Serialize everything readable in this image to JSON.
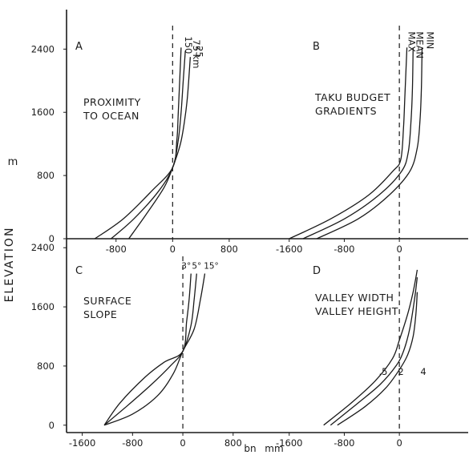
{
  "figure": {
    "ylabel": "ELEVATION",
    "yunit": "m",
    "xlabel": "bn",
    "xunit": "mm"
  },
  "chart_data": [
    {
      "type": "line",
      "panel_letter": "A",
      "title_lines": [
        "PROXIMITY",
        "TO OCEAN"
      ],
      "xlim": [
        -1500,
        1300
      ],
      "ylim": [
        0,
        2900
      ],
      "xticks": [
        {
          "v": -800,
          "label": "-800"
        },
        {
          "v": 0,
          "label": "0"
        },
        {
          "v": 800,
          "label": "800"
        }
      ],
      "yticks": [
        {
          "v": 0,
          "label": "0"
        },
        {
          "v": 800,
          "label": "800"
        },
        {
          "v": 1600,
          "label": "1600"
        },
        {
          "v": 2400,
          "label": "2400"
        }
      ],
      "show_x_axis_line": true,
      "series": [
        {
          "name": "150",
          "points": [
            [
              -1100,
              0
            ],
            [
              -700,
              250
            ],
            [
              -300,
              600
            ],
            [
              0,
              900
            ],
            [
              60,
              1250
            ],
            [
              80,
              1600
            ],
            [
              100,
              2000
            ],
            [
              120,
              2420
            ]
          ]
        },
        {
          "name": "75 km",
          "points": [
            [
              -870,
              0
            ],
            [
              -550,
              250
            ],
            [
              -200,
              600
            ],
            [
              0,
              900
            ],
            [
              80,
              1250
            ],
            [
              120,
              1600
            ],
            [
              150,
              2000
            ],
            [
              180,
              2380
            ]
          ]
        },
        {
          "name": "25",
          "points": [
            [
              -620,
              0
            ],
            [
              -380,
              300
            ],
            [
              -120,
              650
            ],
            [
              0,
              900
            ],
            [
              110,
              1200
            ],
            [
              170,
              1500
            ],
            [
              210,
              1800
            ],
            [
              250,
              2300
            ]
          ]
        }
      ]
    },
    {
      "type": "line",
      "panel_letter": "B",
      "title_lines": [
        "TAKU BUDGET",
        "GRADIENTS"
      ],
      "xlim": [
        -1900,
        1000
      ],
      "ylim": [
        0,
        2900
      ],
      "xticks": [
        {
          "v": -1600,
          "label": "-1600"
        },
        {
          "v": -800,
          "label": "-800"
        },
        {
          "v": 0,
          "label": "0"
        }
      ],
      "yticks": [],
      "show_x_axis_line": true,
      "series": [
        {
          "name": "MAX",
          "points": [
            [
              -1600,
              0
            ],
            [
              -1000,
              250
            ],
            [
              -450,
              550
            ],
            [
              -100,
              850
            ],
            [
              20,
              1000
            ],
            [
              60,
              1400
            ],
            [
              80,
              1800
            ],
            [
              110,
              2420
            ]
          ]
        },
        {
          "name": "MEAN",
          "points": [
            [
              -1400,
              0
            ],
            [
              -800,
              250
            ],
            [
              -300,
              550
            ],
            [
              30,
              850
            ],
            [
              130,
              1100
            ],
            [
              170,
              1500
            ],
            [
              190,
              1900
            ],
            [
              200,
              2420
            ]
          ]
        },
        {
          "name": "MIN",
          "points": [
            [
              -1200,
              0
            ],
            [
              -600,
              250
            ],
            [
              -150,
              550
            ],
            [
              150,
              850
            ],
            [
              260,
              1150
            ],
            [
              300,
              1500
            ],
            [
              320,
              1900
            ],
            [
              330,
              2420
            ]
          ]
        }
      ]
    },
    {
      "type": "line",
      "panel_letter": "C",
      "title_lines": [
        "SURFACE",
        "SLOPE"
      ],
      "xlim": [
        -1850,
        1300
      ],
      "ylim": [
        -100,
        2500
      ],
      "xticks": [
        {
          "v": -1600,
          "label": "-1600"
        },
        {
          "v": -800,
          "label": "-800"
        },
        {
          "v": 0,
          "label": "0"
        },
        {
          "v": 800,
          "label": "800"
        }
      ],
      "yticks": [
        {
          "v": 0,
          "label": "0"
        },
        {
          "v": 800,
          "label": "800"
        },
        {
          "v": 1600,
          "label": "1600"
        },
        {
          "v": 2400,
          "label": "2400"
        }
      ],
      "show_x_axis_line": false,
      "series": [
        {
          "name": "3°",
          "points": [
            [
              -1250,
              0
            ],
            [
              -1000,
              300
            ],
            [
              -600,
              650
            ],
            [
              -300,
              850
            ],
            [
              0,
              1000
            ],
            [
              60,
              1400
            ],
            [
              100,
              1700
            ],
            [
              130,
              2050
            ]
          ]
        },
        {
          "name": "5°",
          "points": [
            [
              -1250,
              0
            ],
            [
              -900,
              250
            ],
            [
              -500,
              550
            ],
            [
              -200,
              800
            ],
            [
              0,
              1000
            ],
            [
              130,
              1350
            ],
            [
              180,
              1700
            ],
            [
              220,
              2050
            ]
          ]
        },
        {
          "name": "15°",
          "points": [
            [
              -1250,
              0
            ],
            [
              -800,
              150
            ],
            [
              -400,
              400
            ],
            [
              -150,
              700
            ],
            [
              0,
              1000
            ],
            [
              180,
              1300
            ],
            [
              280,
              1700
            ],
            [
              350,
              2050
            ]
          ]
        }
      ]
    },
    {
      "type": "line",
      "panel_letter": "D",
      "title_lines": [
        "VALLEY WIDTH",
        "VALLEY HEIGHT"
      ],
      "xlim": [
        -1900,
        1000
      ],
      "ylim": [
        -100,
        2500
      ],
      "xticks": [
        {
          "v": -1600,
          "label": "-1600"
        },
        {
          "v": -800,
          "label": "-800"
        },
        {
          "v": 0,
          "label": "0"
        }
      ],
      "yticks": [],
      "show_x_axis_line": false,
      "series": [
        {
          "name": ".5",
          "points": [
            [
              -1100,
              0
            ],
            [
              -700,
              300
            ],
            [
              -350,
              600
            ],
            [
              -100,
              900
            ],
            [
              0,
              1150
            ],
            [
              120,
              1500
            ],
            [
              200,
              1800
            ],
            [
              260,
              2100
            ]
          ]
        },
        {
          "name": "2",
          "points": [
            [
              -1000,
              0
            ],
            [
              -600,
              300
            ],
            [
              -280,
              550
            ],
            [
              -50,
              800
            ],
            [
              60,
              1000
            ],
            [
              150,
              1300
            ],
            [
              220,
              1700
            ],
            [
              260,
              2000
            ]
          ]
        },
        {
          "name": "4",
          "points": [
            [
              -900,
              0
            ],
            [
              -500,
              250
            ],
            [
              -200,
              500
            ],
            [
              0,
              750
            ],
            [
              120,
              950
            ],
            [
              200,
              1200
            ],
            [
              240,
              1500
            ],
            [
              260,
              1800
            ]
          ]
        }
      ]
    }
  ]
}
